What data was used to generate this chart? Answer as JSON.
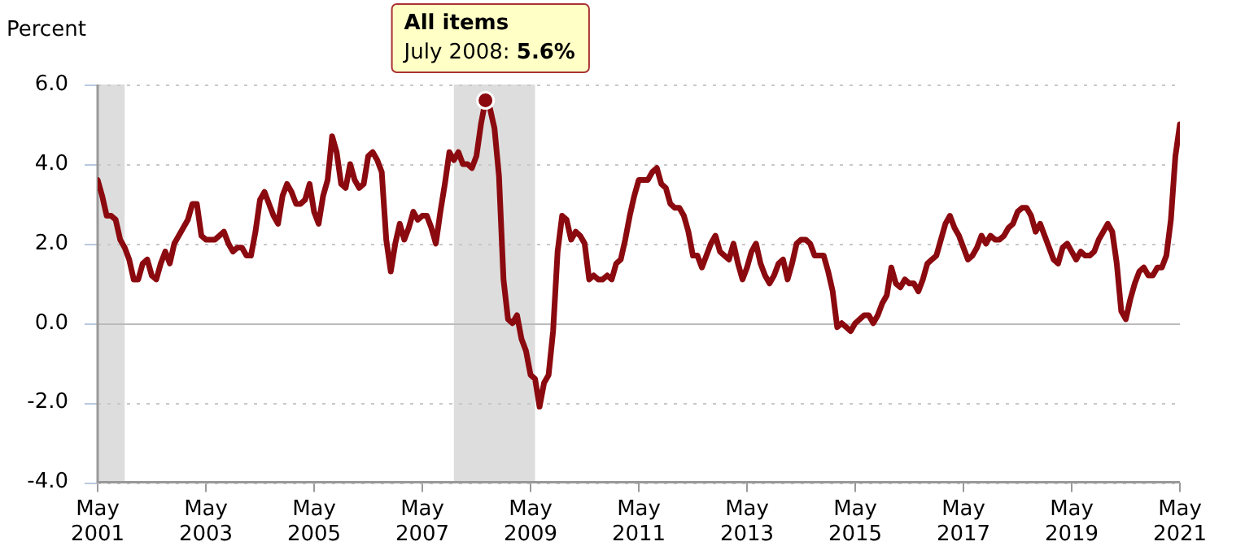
{
  "chart_data": {
    "type": "line",
    "ylabel": "Percent",
    "x": [
      "2001-05",
      "2001-06",
      "2001-07",
      "2001-08",
      "2001-09",
      "2001-10",
      "2001-11",
      "2001-12",
      "2002-01",
      "2002-02",
      "2002-03",
      "2002-04",
      "2002-05",
      "2002-06",
      "2002-07",
      "2002-08",
      "2002-09",
      "2002-10",
      "2002-11",
      "2002-12",
      "2003-01",
      "2003-02",
      "2003-03",
      "2003-04",
      "2003-05",
      "2003-06",
      "2003-07",
      "2003-08",
      "2003-09",
      "2003-10",
      "2003-11",
      "2003-12",
      "2004-01",
      "2004-02",
      "2004-03",
      "2004-04",
      "2004-05",
      "2004-06",
      "2004-07",
      "2004-08",
      "2004-09",
      "2004-10",
      "2004-11",
      "2004-12",
      "2005-01",
      "2005-02",
      "2005-03",
      "2005-04",
      "2005-05",
      "2005-06",
      "2005-07",
      "2005-08",
      "2005-09",
      "2005-10",
      "2005-11",
      "2005-12",
      "2006-01",
      "2006-02",
      "2006-03",
      "2006-04",
      "2006-05",
      "2006-06",
      "2006-07",
      "2006-08",
      "2006-09",
      "2006-10",
      "2006-11",
      "2006-12",
      "2007-01",
      "2007-02",
      "2007-03",
      "2007-04",
      "2007-05",
      "2007-06",
      "2007-07",
      "2007-08",
      "2007-09",
      "2007-10",
      "2007-11",
      "2007-12",
      "2008-01",
      "2008-02",
      "2008-03",
      "2008-04",
      "2008-05",
      "2008-06",
      "2008-07",
      "2008-08",
      "2008-09",
      "2008-10",
      "2008-11",
      "2008-12",
      "2009-01",
      "2009-02",
      "2009-03",
      "2009-04",
      "2009-05",
      "2009-06",
      "2009-07",
      "2009-08",
      "2009-09",
      "2009-10",
      "2009-11",
      "2009-12",
      "2010-01",
      "2010-02",
      "2010-03",
      "2010-04",
      "2010-05",
      "2010-06",
      "2010-07",
      "2010-08",
      "2010-09",
      "2010-10",
      "2010-11",
      "2010-12",
      "2011-01",
      "2011-02",
      "2011-03",
      "2011-04",
      "2011-05",
      "2011-06",
      "2011-07",
      "2011-08",
      "2011-09",
      "2011-10",
      "2011-11",
      "2011-12",
      "2012-01",
      "2012-02",
      "2012-03",
      "2012-04",
      "2012-05",
      "2012-06",
      "2012-07",
      "2012-08",
      "2012-09",
      "2012-10",
      "2012-11",
      "2012-12",
      "2013-01",
      "2013-02",
      "2013-03",
      "2013-04",
      "2013-05",
      "2013-06",
      "2013-07",
      "2013-08",
      "2013-09",
      "2013-10",
      "2013-11",
      "2013-12",
      "2014-01",
      "2014-02",
      "2014-03",
      "2014-04",
      "2014-05",
      "2014-06",
      "2014-07",
      "2014-08",
      "2014-09",
      "2014-10",
      "2014-11",
      "2014-12",
      "2015-01",
      "2015-02",
      "2015-03",
      "2015-04",
      "2015-05",
      "2015-06",
      "2015-07",
      "2015-08",
      "2015-09",
      "2015-10",
      "2015-11",
      "2015-12",
      "2016-01",
      "2016-02",
      "2016-03",
      "2016-04",
      "2016-05",
      "2016-06",
      "2016-07",
      "2016-08",
      "2016-09",
      "2016-10",
      "2016-11",
      "2016-12",
      "2017-01",
      "2017-02",
      "2017-03",
      "2017-04",
      "2017-05",
      "2017-06",
      "2017-07",
      "2017-08",
      "2017-09",
      "2017-10",
      "2017-11",
      "2017-12",
      "2018-01",
      "2018-02",
      "2018-03",
      "2018-04",
      "2018-05",
      "2018-06",
      "2018-07",
      "2018-08",
      "2018-09",
      "2018-10",
      "2018-11",
      "2018-12",
      "2019-01",
      "2019-02",
      "2019-03",
      "2019-04",
      "2019-05",
      "2019-06",
      "2019-07",
      "2019-08",
      "2019-09",
      "2019-10",
      "2019-11",
      "2019-12",
      "2020-01",
      "2020-02",
      "2020-03",
      "2020-04",
      "2020-05",
      "2020-06",
      "2020-07",
      "2020-08",
      "2020-09",
      "2020-10",
      "2020-11",
      "2020-12",
      "2021-01",
      "2021-02",
      "2021-03",
      "2021-04",
      "2021-05"
    ],
    "series": [
      {
        "name": "All items",
        "color": "#8b0a0f",
        "values": [
          3.6,
          3.2,
          2.7,
          2.7,
          2.6,
          2.1,
          1.9,
          1.6,
          1.1,
          1.1,
          1.5,
          1.6,
          1.2,
          1.1,
          1.5,
          1.8,
          1.5,
          2.0,
          2.2,
          2.4,
          2.6,
          3.0,
          3.0,
          2.2,
          2.1,
          2.1,
          2.1,
          2.2,
          2.3,
          2.0,
          1.8,
          1.9,
          1.9,
          1.7,
          1.7,
          2.3,
          3.1,
          3.3,
          3.0,
          2.7,
          2.5,
          3.2,
          3.5,
          3.3,
          3.0,
          3.0,
          3.1,
          3.5,
          2.8,
          2.5,
          3.2,
          3.6,
          4.7,
          4.3,
          3.5,
          3.4,
          4.0,
          3.6,
          3.4,
          3.5,
          4.2,
          4.3,
          4.1,
          3.8,
          2.1,
          1.3,
          2.0,
          2.5,
          2.1,
          2.4,
          2.8,
          2.6,
          2.7,
          2.7,
          2.4,
          2.0,
          2.8,
          3.5,
          4.3,
          4.1,
          4.3,
          4.0,
          4.0,
          3.9,
          4.2,
          5.0,
          5.6,
          5.4,
          4.9,
          3.7,
          1.1,
          0.1,
          0.0,
          0.2,
          -0.4,
          -0.7,
          -1.3,
          -1.4,
          -2.1,
          -1.5,
          -1.3,
          -0.2,
          1.8,
          2.7,
          2.6,
          2.1,
          2.3,
          2.2,
          2.0,
          1.1,
          1.2,
          1.1,
          1.1,
          1.2,
          1.1,
          1.5,
          1.6,
          2.1,
          2.7,
          3.2,
          3.6,
          3.6,
          3.6,
          3.8,
          3.9,
          3.5,
          3.4,
          3.0,
          2.9,
          2.9,
          2.7,
          2.3,
          1.7,
          1.7,
          1.4,
          1.7,
          2.0,
          2.2,
          1.8,
          1.7,
          1.6,
          2.0,
          1.5,
          1.1,
          1.4,
          1.8,
          2.0,
          1.5,
          1.2,
          1.0,
          1.2,
          1.5,
          1.6,
          1.1,
          1.5,
          2.0,
          2.1,
          2.1,
          2.0,
          1.7,
          1.7,
          1.7,
          1.3,
          0.8,
          -0.1,
          0.0,
          -0.1,
          -0.2,
          0.0,
          0.1,
          0.2,
          0.2,
          0.0,
          0.2,
          0.5,
          0.7,
          1.4,
          1.0,
          0.9,
          1.1,
          1.0,
          1.0,
          0.8,
          1.1,
          1.5,
          1.6,
          1.7,
          2.1,
          2.5,
          2.7,
          2.4,
          2.2,
          1.9,
          1.6,
          1.7,
          1.9,
          2.2,
          2.0,
          2.2,
          2.1,
          2.1,
          2.2,
          2.4,
          2.5,
          2.8,
          2.9,
          2.9,
          2.7,
          2.3,
          2.5,
          2.2,
          1.9,
          1.6,
          1.5,
          1.9,
          2.0,
          1.8,
          1.6,
          1.8,
          1.7,
          1.7,
          1.8,
          2.1,
          2.3,
          2.5,
          2.3,
          1.5,
          0.3,
          0.1,
          0.6,
          1.0,
          1.3,
          1.4,
          1.2,
          1.2,
          1.4,
          1.4,
          1.7,
          2.6,
          4.2,
          5.0
        ]
      }
    ],
    "xlim": [
      "2001-05",
      "2021-05"
    ],
    "xticks": [
      {
        "value": "2001-05",
        "label": "May 2001"
      },
      {
        "value": "2003-05",
        "label": "May 2003"
      },
      {
        "value": "2005-05",
        "label": "May 2005"
      },
      {
        "value": "2007-05",
        "label": "May 2007"
      },
      {
        "value": "2009-05",
        "label": "May 2009"
      },
      {
        "value": "2011-05",
        "label": "May 2011"
      },
      {
        "value": "2013-05",
        "label": "May 2013"
      },
      {
        "value": "2015-05",
        "label": "May 2015"
      },
      {
        "value": "2017-05",
        "label": "May 2017"
      },
      {
        "value": "2019-05",
        "label": "May 2019"
      },
      {
        "value": "2021-05",
        "label": "May 2021"
      }
    ],
    "ylim": [
      -4,
      6
    ],
    "yticks": [
      {
        "value": -4,
        "label": "-4.0"
      },
      {
        "value": -2,
        "label": "-2.0"
      },
      {
        "value": 0,
        "label": "0.0"
      },
      {
        "value": 2,
        "label": "2.0"
      },
      {
        "value": 4,
        "label": "4.0"
      },
      {
        "value": 6,
        "label": "6.0"
      }
    ],
    "grid": "y",
    "legend": false,
    "marker": "none",
    "line_style": "solid",
    "bands": [
      {
        "axis": "x",
        "from": "2001-05",
        "to": "2001-11",
        "color": "#dddddd"
      },
      {
        "axis": "x",
        "from": "2007-12",
        "to": "2009-06",
        "color": "#dddddd"
      }
    ],
    "annotations": [
      {
        "text": "July 2008: 5.6%",
        "x": "2008-07",
        "y": 5.6
      }
    ]
  }
}
